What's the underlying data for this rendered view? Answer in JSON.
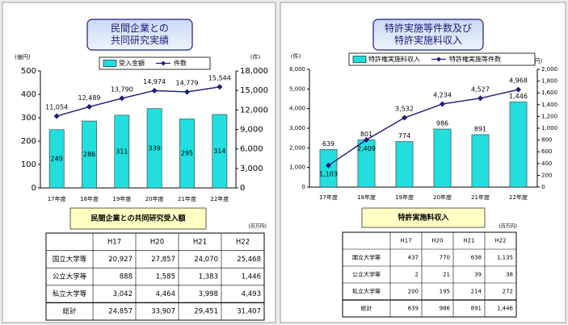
{
  "chart_data": [
    {
      "type": "bar-line",
      "title": [
        "民間企業との",
        "共同研究実績"
      ],
      "y_unit": "(億円)",
      "y2_unit": "(件)",
      "categories": [
        "17年度",
        "18年度",
        "19年度",
        "20年度",
        "21年度",
        "22年度"
      ],
      "series": [
        {
          "name": "受入金額",
          "type": "bar",
          "axis": "y",
          "color": "#22dede",
          "values": [
            249,
            286,
            311,
            339,
            295,
            314
          ]
        },
        {
          "name": "件数",
          "type": "line",
          "axis": "y2",
          "color": "#1c1c7a",
          "values": [
            11054,
            12489,
            13790,
            14974,
            14779,
            15544
          ],
          "value_labels": [
            "11,054",
            "12,489",
            "13,790",
            "14,974",
            "14,779",
            "15,544"
          ]
        }
      ],
      "ylim": [
        0,
        500
      ],
      "yticks": [
        0,
        100,
        200,
        300,
        400,
        500
      ],
      "y2lim": [
        0,
        18000
      ],
      "y2ticks": [
        0,
        {
          "value": 3000,
          "label": "3,000"
        },
        {
          "value": 6000,
          "label": "6,000"
        },
        {
          "value": 9000,
          "label": "9,000"
        },
        {
          "value": 12000,
          "label": "12,000"
        },
        {
          "value": 15000,
          "label": "15,000"
        },
        {
          "value": 18000,
          "label": "18,000"
        }
      ],
      "legend": "top"
    },
    {
      "type": "bar-line",
      "title": [
        "特許実施等件数及び",
        "特許実施料収入"
      ],
      "y_unit": "(件)",
      "y2_unit": "(百万円)",
      "categories": [
        "17年度",
        "18年度",
        "19年度",
        "20年度",
        "21年度",
        "22年度"
      ],
      "series": [
        {
          "name": "特許権実施料収入",
          "type": "bar",
          "axis": "y2",
          "color": "#22dede",
          "values": [
            639,
            801,
            774,
            986,
            891,
            1446
          ],
          "value_labels": [
            "639",
            "801",
            "774",
            "986",
            "891",
            "1,446"
          ]
        },
        {
          "name": "特許権実施等件数",
          "type": "line",
          "axis": "y",
          "color": "#1c1c7a",
          "values": [
            1103,
            2409,
            3532,
            4234,
            4527,
            4968
          ],
          "value_labels": [
            "1,103",
            "2,409",
            "3,532",
            "4,234",
            "4,527",
            "4,968"
          ]
        }
      ],
      "ylim": [
        0,
        6000
      ],
      "yticks": [
        0,
        {
          "value": 1000,
          "label": "1,000"
        },
        {
          "value": 2000,
          "label": "2,000"
        },
        {
          "value": 3000,
          "label": "3,000"
        },
        {
          "value": 4000,
          "label": "4,000"
        },
        {
          "value": 5000,
          "label": "5,000"
        },
        {
          "value": 6000,
          "label": "6,000"
        }
      ],
      "y2lim": [
        0,
        2000
      ],
      "y2ticks": [
        0,
        200,
        400,
        600,
        800,
        {
          "value": 1000,
          "label": "1,000"
        },
        {
          "value": 1200,
          "label": "1,200"
        },
        {
          "value": 1400,
          "label": "1,400"
        },
        {
          "value": 1600,
          "label": "1,600"
        },
        {
          "value": 1800,
          "label": "1,800"
        },
        {
          "value": 2000,
          "label": "2,000"
        }
      ],
      "legend": "top"
    }
  ],
  "tables": [
    {
      "caption": "民間企業との共同研究受入額",
      "unit": "(百万円)",
      "header": [
        "H17",
        "H20",
        "H21",
        "H22"
      ],
      "rows": [
        [
          "国立大学等",
          "20,927",
          "27,857",
          "24,070",
          "25,468"
        ],
        [
          "公立大学等",
          "888",
          "1,585",
          "1,383",
          "1,446"
        ],
        [
          "私立大学等",
          "3,042",
          "4,464",
          "3,998",
          "4,493"
        ],
        [
          "総計",
          "24,857",
          "33,907",
          "29,451",
          "31,407"
        ]
      ]
    },
    {
      "caption": "特許実施料収入",
      "unit": "(百万円)",
      "header": [
        "H17",
        "H20",
        "H21",
        "H22"
      ],
      "rows": [
        [
          "国立大学等",
          "437",
          "770",
          "638",
          "1,135"
        ],
        [
          "公立大学等",
          "2",
          "21",
          "39",
          "38"
        ],
        [
          "私立大学等",
          "200",
          "195",
          "214",
          "272"
        ],
        [
          "総計",
          "639",
          "986",
          "891",
          "1,446"
        ]
      ]
    }
  ]
}
